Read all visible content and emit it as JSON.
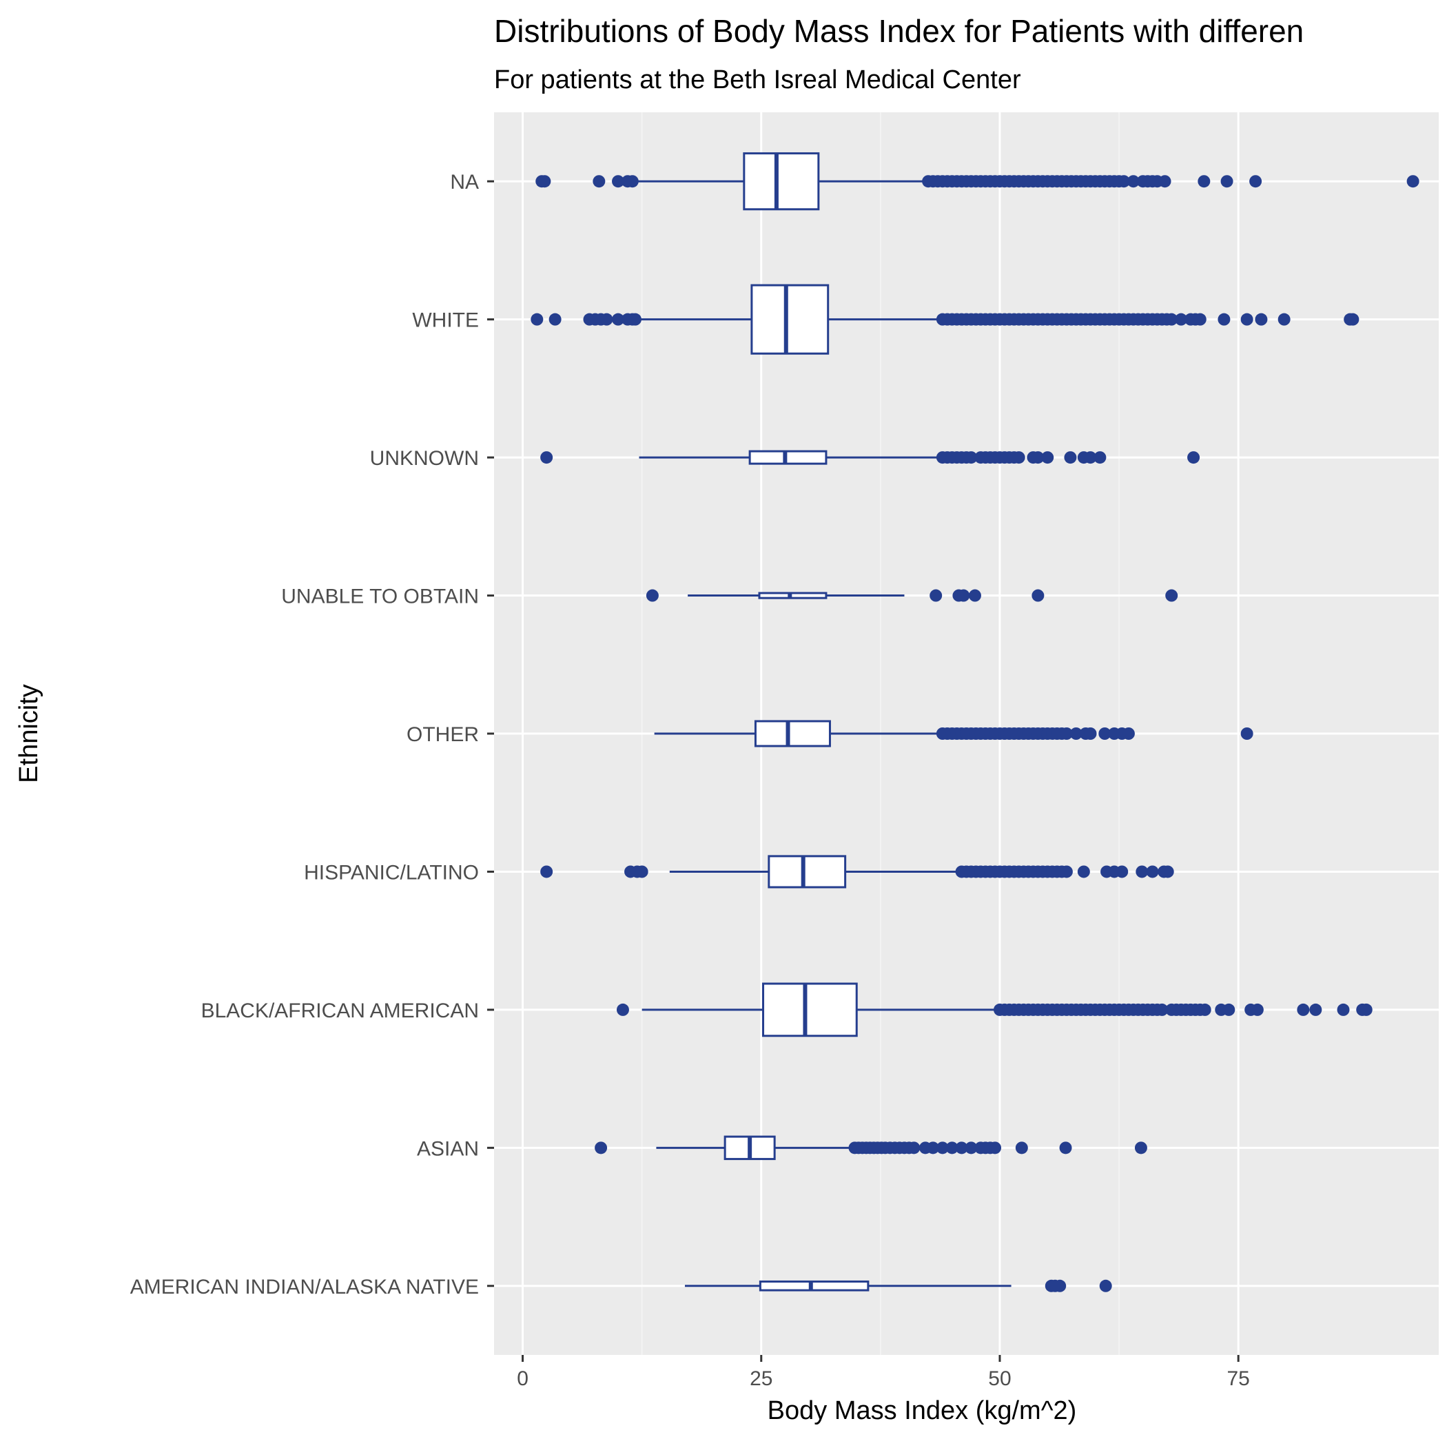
{
  "chart_data": {
    "type": "boxplot",
    "orientation": "horizontal",
    "title": "Distributions of Body Mass Index for Patients with differen",
    "subtitle": "For patients at the Beth Isreal Medical Center",
    "xlabel": "Body Mass Index (kg/m^2)",
    "ylabel": "Ethnicity",
    "xlim": [
      -3,
      96
    ],
    "x_ticks": [
      0,
      25,
      50,
      75
    ],
    "x_tick_labels": [
      "0",
      "25",
      "50",
      "75"
    ],
    "grid": true,
    "colors": {
      "panel": "#ebebeb",
      "grid_major": "#ffffff",
      "grid_minor": "#f5f5f5",
      "box_stroke": "#253e8e",
      "box_fill": "#ffffff",
      "outlier": "#253e8e",
      "tick_label": "#4d4d4d"
    },
    "categories": [
      "NA",
      "WHITE",
      "UNKNOWN",
      "UNABLE TO OBTAIN",
      "OTHER",
      "HISPANIC/LATINO",
      "BLACK/AFRICAN AMERICAN",
      "ASIAN",
      "AMERICAN INDIAN/ALASKA NATIVE"
    ],
    "boxes": [
      {
        "category": "NA",
        "whisker_low": 12.0,
        "q1": 23.2,
        "median": 26.6,
        "q3": 31.0,
        "whisker_high": 42.0,
        "relative_width": 0.45,
        "outliers": [
          2.0,
          2.3,
          8.0,
          10.0,
          11.0,
          11.5,
          42.5,
          43.0,
          43.5,
          44.0,
          44.5,
          45.0,
          45.5,
          46.0,
          46.5,
          47.0,
          47.5,
          48.0,
          48.5,
          49.0,
          49.5,
          50.0,
          50.5,
          51.0,
          51.5,
          52.0,
          52.5,
          53.0,
          53.5,
          54.0,
          54.5,
          55.0,
          55.5,
          56.0,
          56.5,
          57.0,
          57.5,
          58.0,
          58.5,
          59.0,
          59.5,
          60.0,
          60.5,
          61.0,
          61.5,
          62.0,
          62.5,
          63.0,
          64.0,
          65.0,
          65.5,
          66.0,
          66.5,
          67.3,
          71.4,
          73.8,
          76.8,
          93.3
        ]
      },
      {
        "category": "WHITE",
        "whisker_low": 12.0,
        "q1": 24.0,
        "median": 27.6,
        "q3": 32.0,
        "whisker_high": 43.5,
        "relative_width": 0.55,
        "outliers": [
          1.5,
          3.4,
          7.0,
          7.6,
          8.2,
          8.8,
          10.0,
          11.0,
          11.5,
          11.8,
          44.0,
          44.5,
          45.0,
          45.5,
          46.0,
          46.5,
          47.0,
          47.5,
          48.0,
          48.5,
          49.0,
          49.5,
          50.0,
          50.5,
          51.0,
          51.5,
          52.0,
          52.5,
          53.0,
          53.5,
          54.0,
          54.5,
          55.0,
          55.5,
          56.0,
          56.5,
          57.0,
          57.5,
          58.0,
          58.5,
          59.0,
          59.5,
          60.0,
          60.5,
          61.0,
          61.5,
          62.0,
          62.5,
          63.0,
          63.5,
          64.0,
          64.5,
          65.0,
          65.5,
          66.0,
          66.5,
          67.0,
          67.5,
          68.0,
          69.0,
          70.0,
          70.5,
          71.0,
          73.5,
          75.9,
          77.4,
          79.8,
          86.7,
          87.0
        ]
      },
      {
        "category": "UNKNOWN",
        "whisker_low": 12.2,
        "q1": 23.8,
        "median": 27.5,
        "q3": 31.8,
        "whisker_high": 43.5,
        "relative_width": 0.1,
        "outliers": [
          2.5,
          44.0,
          44.5,
          45.0,
          45.5,
          46.0,
          46.5,
          47.0,
          48.0,
          48.5,
          49.0,
          49.5,
          50.0,
          50.5,
          51.0,
          51.5,
          52.0,
          53.5,
          54.0,
          55.0,
          57.4,
          58.8,
          59.5,
          60.5,
          70.3
        ]
      },
      {
        "category": "UNABLE TO OBTAIN",
        "whisker_low": 17.3,
        "q1": 24.8,
        "median": 28.0,
        "q3": 31.8,
        "whisker_high": 40.0,
        "relative_width": 0.04,
        "outliers": [
          13.6,
          43.3,
          45.7,
          46.2,
          47.4,
          54.0,
          68.0
        ]
      },
      {
        "category": "OTHER",
        "whisker_low": 13.8,
        "q1": 24.4,
        "median": 27.8,
        "q3": 32.2,
        "whisker_high": 43.5,
        "relative_width": 0.2,
        "outliers": [
          44.0,
          44.5,
          45.0,
          45.5,
          46.0,
          46.5,
          47.0,
          47.5,
          48.0,
          48.5,
          49.0,
          49.5,
          50.0,
          50.5,
          51.0,
          51.5,
          52.0,
          52.5,
          53.0,
          53.5,
          54.0,
          54.5,
          55.0,
          55.5,
          56.0,
          56.5,
          57.0,
          58.0,
          59.0,
          59.5,
          61.0,
          62.0,
          62.8,
          63.5,
          75.9
        ]
      },
      {
        "category": "HISPANIC/LATINO",
        "whisker_low": 15.4,
        "q1": 25.8,
        "median": 29.4,
        "q3": 33.8,
        "whisker_high": 45.5,
        "relative_width": 0.25,
        "outliers": [
          2.5,
          11.3,
          12.0,
          12.5,
          46.0,
          46.5,
          47.0,
          47.5,
          48.0,
          48.5,
          49.0,
          49.5,
          50.0,
          50.5,
          51.0,
          51.5,
          52.0,
          52.5,
          53.0,
          53.5,
          54.0,
          54.5,
          55.0,
          55.5,
          56.0,
          56.5,
          57.0,
          58.8,
          61.2,
          62.0,
          62.8,
          64.9,
          66.0,
          67.2,
          67.6
        ]
      },
      {
        "category": "BLACK/AFRICAN AMERICAN",
        "whisker_low": 12.5,
        "q1": 25.2,
        "median": 29.6,
        "q3": 35.0,
        "whisker_high": 49.5,
        "relative_width": 0.42,
        "outliers": [
          10.5,
          50.0,
          50.5,
          51.0,
          51.5,
          52.0,
          52.5,
          53.0,
          53.5,
          54.0,
          54.5,
          55.0,
          55.5,
          56.0,
          56.5,
          57.0,
          57.5,
          58.0,
          58.5,
          59.0,
          59.5,
          60.0,
          60.5,
          61.0,
          61.5,
          62.0,
          62.5,
          63.0,
          63.5,
          64.0,
          64.5,
          65.0,
          65.5,
          66.0,
          66.5,
          67.0,
          68.0,
          68.5,
          69.0,
          69.5,
          70.0,
          70.5,
          71.0,
          71.5,
          73.2,
          74.0,
          76.3,
          77.0,
          81.8,
          83.1,
          86.0,
          88.0,
          88.4
        ]
      },
      {
        "category": "ASIAN",
        "whisker_low": 14.0,
        "q1": 21.2,
        "median": 23.8,
        "q3": 26.4,
        "whisker_high": 34.3,
        "relative_width": 0.18,
        "outliers": [
          8.2,
          34.8,
          35.2,
          35.6,
          36.0,
          36.4,
          36.8,
          37.2,
          37.6,
          38.0,
          38.5,
          39.0,
          39.5,
          40.0,
          40.5,
          41.0,
          42.2,
          43.0,
          44.0,
          45.0,
          46.0,
          47.0,
          48.0,
          48.5,
          49.0,
          49.5,
          52.3,
          56.9,
          64.8
        ]
      },
      {
        "category": "AMERICAN INDIAN/ALASKA NATIVE",
        "whisker_low": 17.0,
        "q1": 24.9,
        "median": 30.2,
        "q3": 36.2,
        "whisker_high": 51.2,
        "relative_width": 0.07,
        "outliers": [
          55.4,
          55.8,
          56.3,
          61.1
        ]
      }
    ]
  }
}
